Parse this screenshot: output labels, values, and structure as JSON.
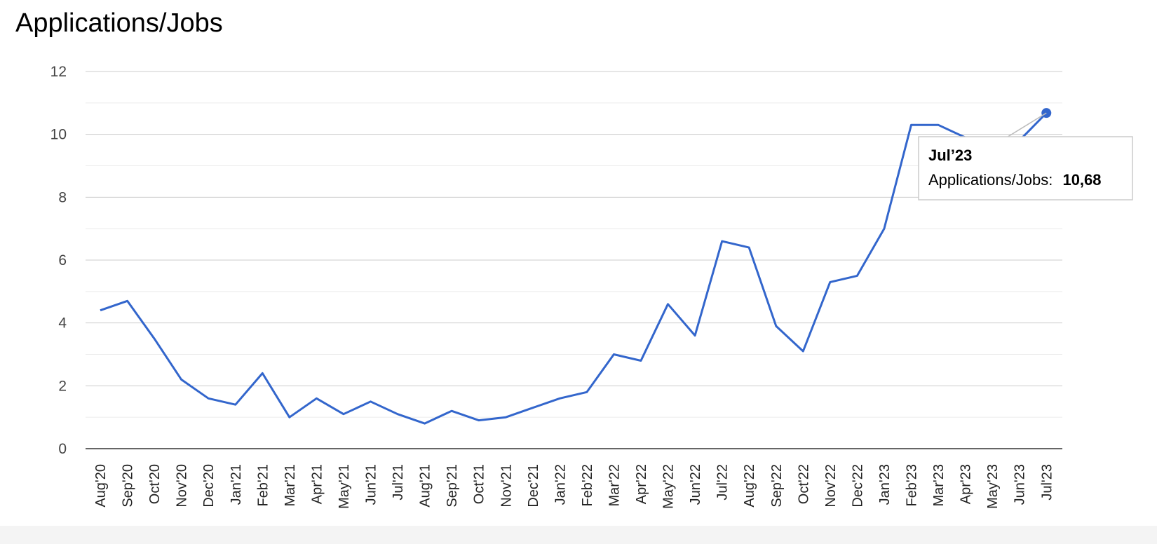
{
  "chart_data": {
    "type": "line",
    "title": "Applications/Jobs",
    "ylim": [
      0,
      12
    ],
    "yticks": [
      "0",
      "2",
      "4",
      "6",
      "8",
      "10",
      "12"
    ],
    "grid": true,
    "categories": [
      "Aug'20",
      "Sep'20",
      "Oct'20",
      "Nov'20",
      "Dec'20",
      "Jan'21",
      "Feb'21",
      "Mar'21",
      "Apr'21",
      "May'21",
      "Jun'21",
      "Jul'21",
      "Aug'21",
      "Sep'21",
      "Oct'21",
      "Nov'21",
      "Dec'21",
      "Jan'22",
      "Feb'22",
      "Mar'22",
      "Apr'22",
      "May'22",
      "Jun'22",
      "Jul'22",
      "Aug'22",
      "Sep'22",
      "Oct'22",
      "Nov'22",
      "Dec'22",
      "Jan'23",
      "Feb'23",
      "Mar'23",
      "Apr'23",
      "May'23",
      "Jun'23",
      "Jul'23"
    ],
    "series": [
      {
        "name": "Applications/Jobs",
        "color": "#3366cc",
        "values": [
          4.4,
          4.7,
          3.5,
          2.2,
          1.6,
          1.4,
          2.4,
          1.0,
          1.6,
          1.1,
          1.5,
          1.1,
          0.8,
          1.2,
          0.9,
          1.0,
          1.3,
          1.6,
          1.8,
          3.0,
          2.8,
          4.6,
          3.6,
          6.6,
          6.4,
          3.9,
          3.1,
          5.3,
          5.5,
          7.0,
          10.3,
          10.3,
          9.9,
          9.6,
          9.8,
          10.68
        ]
      }
    ],
    "tooltip": {
      "title": "Jul’23",
      "label": "Applications/Jobs:",
      "value": "10,68"
    }
  }
}
